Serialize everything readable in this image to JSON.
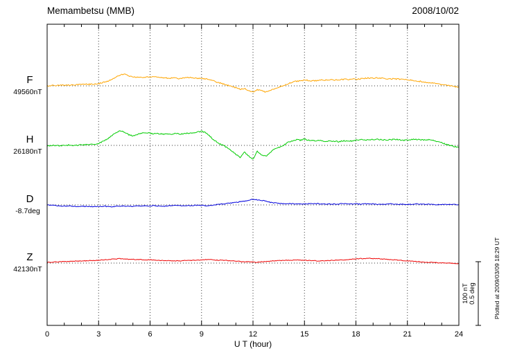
{
  "header": {
    "title": "Memambetsu (MMB)",
    "date": "2008/10/02"
  },
  "x_axis": {
    "label": "U T (hour)",
    "ticks": [
      0,
      3,
      6,
      9,
      12,
      15,
      18,
      21,
      24
    ],
    "minor_step_hours": 1
  },
  "scale_bar": {
    "line1": "100 nT",
    "line2": "0.5 deg"
  },
  "plotted_at": "Plotted at 2009/03/09 18:29 UT",
  "chart_data": {
    "type": "line",
    "title": "Memambetsu (MMB) magnetogram 2008/10/02",
    "xlabel": "U T (hour)",
    "xlim": [
      0,
      24
    ],
    "grid": "dotted vertical every 3h, dotted horizontal baseline per trace",
    "legend_position": "left margin trace labels",
    "x_start": 0,
    "x_step": 0.25,
    "scale": {
      "nT_per_division": 100,
      "deg_per_division": 0.5
    },
    "series": [
      {
        "id": "F",
        "label": "F",
        "base_label": "49560nT",
        "base_value": 49560,
        "unit": "nT",
        "color": "#FFA500",
        "offsets": [
          0,
          0.3,
          0.5,
          0.8,
          1,
          1.2,
          1.5,
          1.8,
          2,
          2.2,
          2.5,
          3,
          3.5,
          5,
          7,
          10,
          14,
          17,
          18,
          16,
          14,
          13,
          13.5,
          14,
          14.5,
          14,
          13,
          12.5,
          12,
          12.5,
          12,
          11.5,
          12,
          13,
          12.5,
          12,
          11.5,
          11,
          9,
          7,
          5,
          3,
          1,
          -1,
          -3,
          -5,
          -4,
          -7,
          -10,
          -6,
          -8,
          -10,
          -7,
          -4,
          -2,
          0,
          3,
          5,
          7,
          8,
          9,
          8.5,
          8,
          8.5,
          9,
          9,
          9.5,
          9,
          9.5,
          10,
          10,
          10.5,
          10.5,
          11,
          12,
          12.5,
          12,
          12.5,
          12,
          11.5,
          11,
          11,
          10.5,
          10,
          10,
          9,
          8,
          7,
          6,
          5,
          4,
          3,
          2,
          1,
          0,
          -1,
          -2
        ]
      },
      {
        "id": "H",
        "label": "H",
        "base_label": "26180nT",
        "base_value": 26180,
        "unit": "nT",
        "color": "#00CC00",
        "offsets": [
          -1,
          -0.5,
          0,
          -0.5,
          0,
          0.5,
          0,
          0.5,
          1,
          1,
          1.5,
          2,
          3,
          6,
          10,
          15,
          20,
          23,
          21,
          17,
          15,
          17,
          19,
          20,
          19,
          18,
          18.5,
          18,
          17.5,
          18,
          18.5,
          18,
          18.5,
          19,
          20,
          21,
          22,
          20,
          14,
          8,
          3,
          0,
          -4,
          -8,
          -14,
          -19,
          -10,
          -17,
          -22,
          -9,
          -15,
          -17,
          -11,
          -6,
          -3,
          0,
          4,
          7,
          9,
          8,
          10,
          8,
          7,
          8,
          7,
          6,
          7,
          6.5,
          6,
          7,
          7.5,
          7,
          8,
          8.5,
          9,
          8.5,
          9,
          9.5,
          9,
          8.5,
          9,
          9.5,
          9,
          8,
          8.5,
          9,
          9.5,
          9,
          8.5,
          9,
          8,
          6,
          4,
          2,
          0,
          -2,
          -3
        ]
      },
      {
        "id": "D",
        "label": "D",
        "base_label": "-8.7deg",
        "base_value": -8.7,
        "unit": "deg",
        "color": "#0000DD",
        "offsets": [
          0,
          -0.003,
          -0.005,
          -0.008,
          -0.01,
          -0.008,
          -0.01,
          -0.012,
          -0.01,
          -0.012,
          -0.014,
          -0.012,
          -0.012,
          -0.01,
          -0.012,
          -0.014,
          -0.012,
          -0.01,
          -0.008,
          -0.01,
          -0.012,
          -0.01,
          -0.008,
          -0.006,
          -0.008,
          -0.006,
          -0.008,
          -0.01,
          -0.008,
          -0.006,
          -0.004,
          -0.006,
          -0.008,
          -0.006,
          -0.004,
          -0.002,
          -0.004,
          -0.006,
          -0.004,
          0,
          0.004,
          0.008,
          0.012,
          0.016,
          0.02,
          0.025,
          0.03,
          0.038,
          0.043,
          0.04,
          0.035,
          0.03,
          0.02,
          0.015,
          0.012,
          0.01,
          0.012,
          0.01,
          0.008,
          0.01,
          0.008,
          0.01,
          0.012,
          0.01,
          0.008,
          0.006,
          0.008,
          0.006,
          0.008,
          0.01,
          0.008,
          0.006,
          0.008,
          0.006,
          0.008,
          0.01,
          0.008,
          0.006,
          0.004,
          0.006,
          0.008,
          0.006,
          0.004,
          0.006,
          0.004,
          0.006,
          0.008,
          0.006,
          0.004,
          0.006,
          0.004,
          0.002,
          0.004,
          0.002,
          0.004,
          0.002,
          0.004
        ]
      },
      {
        "id": "Z",
        "label": "Z",
        "base_label": "42130nT",
        "base_value": 42130,
        "unit": "nT",
        "color": "#EE0000",
        "offsets": [
          1,
          1.5,
          2,
          2,
          2.5,
          2.5,
          3,
          3,
          3.5,
          3.5,
          4,
          4,
          4.5,
          5,
          5.5,
          6,
          6.5,
          7,
          6.5,
          6,
          6,
          5.5,
          5.5,
          5,
          5.5,
          5,
          4.5,
          4,
          4,
          3.5,
          3.5,
          3.5,
          4,
          4,
          4.5,
          4.5,
          5,
          5.5,
          5.5,
          5,
          4.5,
          4.5,
          4,
          3.5,
          3,
          2.5,
          2,
          2.5,
          1.5,
          1,
          2,
          2.5,
          3,
          3.5,
          4,
          4,
          4.5,
          4.5,
          5,
          4.5,
          4.5,
          4,
          4,
          3.5,
          3.5,
          4,
          4,
          4.5,
          4.5,
          5,
          5.5,
          6,
          6.5,
          7,
          7,
          7.5,
          7,
          7,
          6.5,
          6,
          5.5,
          5,
          4.5,
          4,
          3.5,
          3,
          2.5,
          2,
          1.5,
          1,
          1,
          0.5,
          0.5,
          0,
          0,
          -0.5,
          -1
        ]
      }
    ]
  }
}
